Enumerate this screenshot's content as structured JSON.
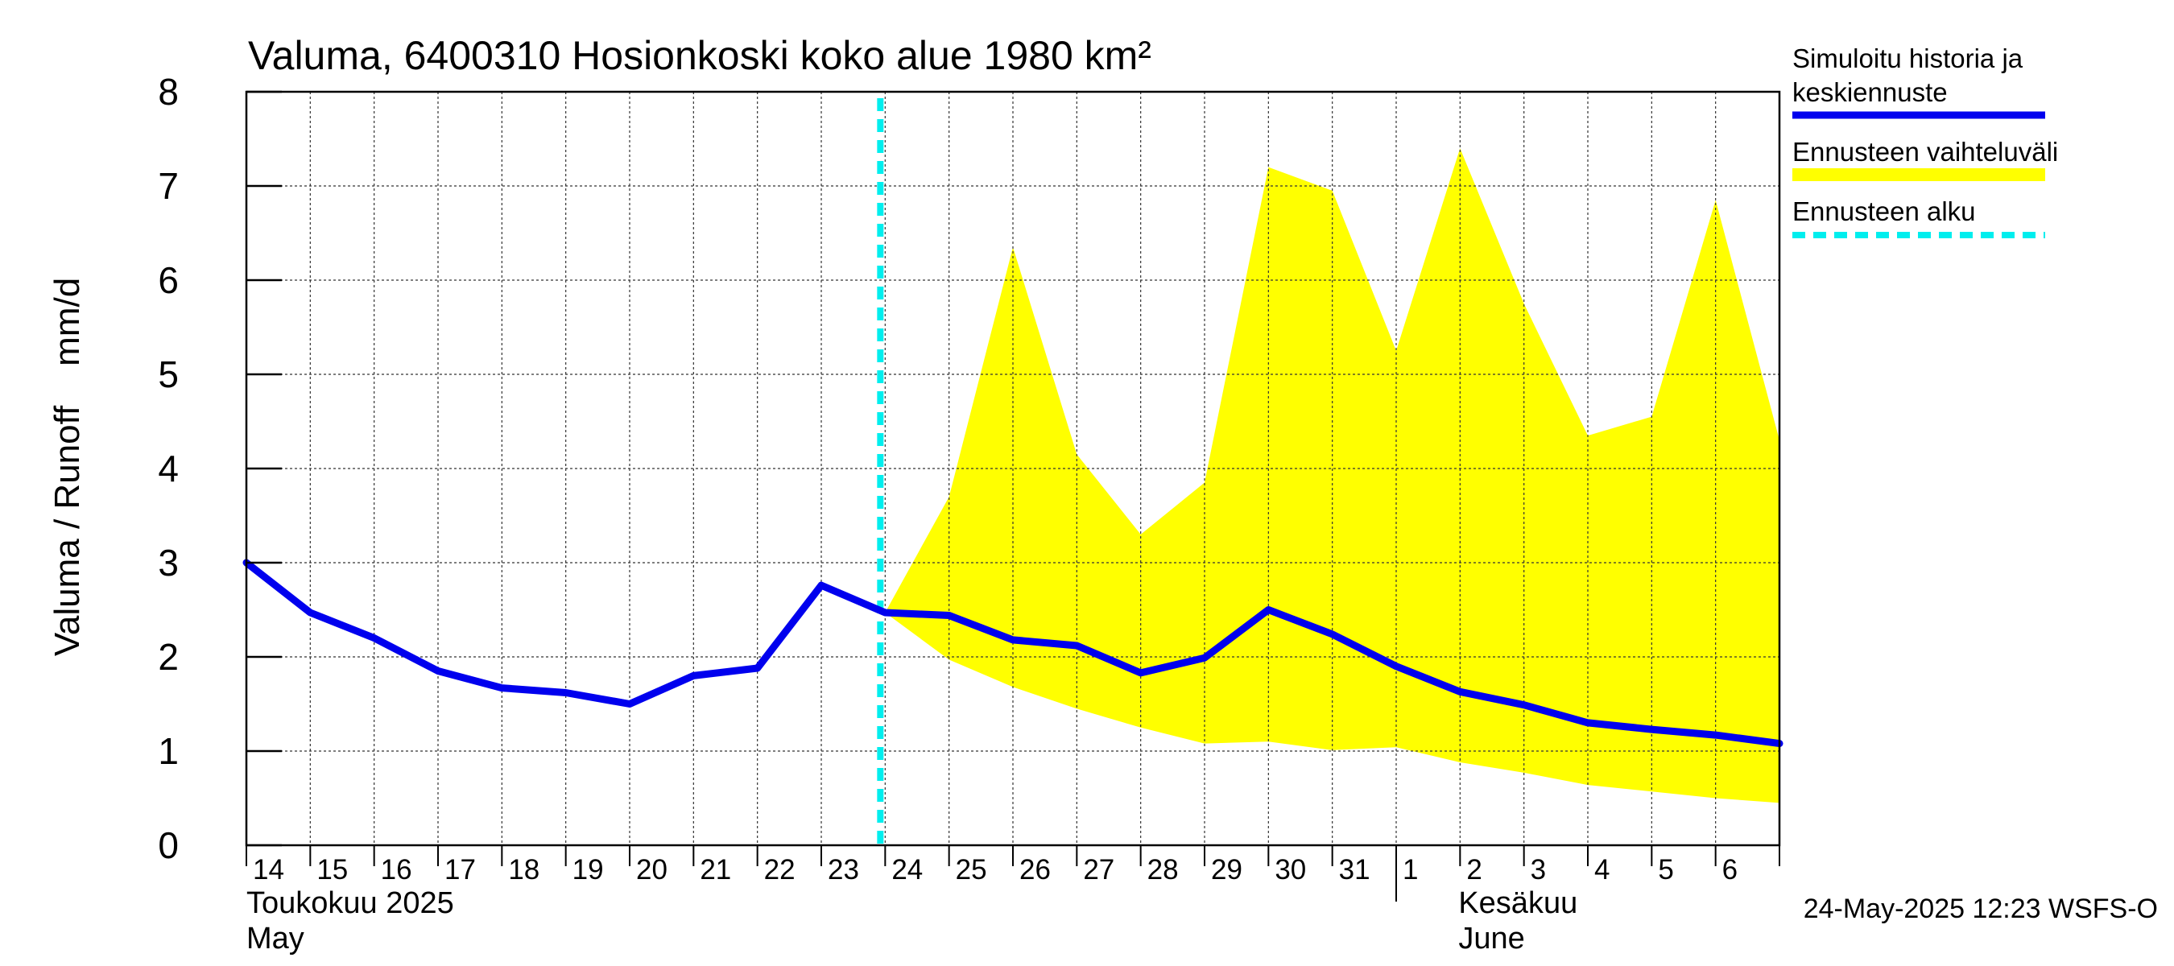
{
  "chart_data": {
    "type": "line",
    "title": "Valuma, 6400310 Hosionkoski koko alue 1980 km²",
    "ylabel": "Valuma / Runoff    mm/d",
    "ylim": [
      0,
      8
    ],
    "yticks": [
      0,
      1,
      2,
      3,
      4,
      5,
      6,
      7,
      8
    ],
    "xlim": [
      "2025-05-14",
      "2025-06-07"
    ],
    "x_tick_labels": [
      "14",
      "15",
      "16",
      "17",
      "18",
      "19",
      "20",
      "21",
      "22",
      "23",
      "24",
      "25",
      "26",
      "27",
      "28",
      "29",
      "30",
      "31",
      "1",
      "2",
      "3",
      "4",
      "5",
      "6"
    ],
    "month_labels": [
      {
        "fi": "Toukokuu  2025",
        "en": "May"
      },
      {
        "fi": "Kesäkuu",
        "en": "June"
      }
    ],
    "grid": true,
    "legend_position": "right",
    "series": [
      {
        "name": "Simuloitu historia ja keskiennuste",
        "color": "#0000ee",
        "x": [
          "2025-05-14",
          "2025-05-15",
          "2025-05-16",
          "2025-05-17",
          "2025-05-18",
          "2025-05-19",
          "2025-05-20",
          "2025-05-21",
          "2025-05-22",
          "2025-05-23",
          "2025-05-24",
          "2025-05-25",
          "2025-05-26",
          "2025-05-27",
          "2025-05-28",
          "2025-05-29",
          "2025-05-30",
          "2025-05-31",
          "2025-06-01",
          "2025-06-02",
          "2025-06-03",
          "2025-06-04",
          "2025-06-05",
          "2025-06-06",
          "2025-06-07"
        ],
        "y": [
          3.0,
          2.47,
          2.2,
          1.85,
          1.67,
          1.62,
          1.5,
          1.8,
          1.88,
          2.76,
          2.47,
          2.44,
          2.18,
          2.12,
          1.83,
          1.99,
          2.5,
          2.24,
          1.9,
          1.63,
          1.49,
          1.3,
          1.23,
          1.17,
          1.08
        ]
      },
      {
        "name": "Ennusteen vaihteluväli",
        "type": "area",
        "color": "#ffff00",
        "x": [
          "2025-05-24",
          "2025-05-25",
          "2025-05-26",
          "2025-05-27",
          "2025-05-28",
          "2025-05-29",
          "2025-05-30",
          "2025-05-31",
          "2025-06-01",
          "2025-06-02",
          "2025-06-03",
          "2025-06-04",
          "2025-06-05",
          "2025-06-06",
          "2025-06-07"
        ],
        "upper": [
          2.47,
          3.7,
          6.35,
          4.15,
          3.3,
          3.85,
          7.2,
          6.95,
          5.25,
          7.4,
          5.75,
          4.35,
          4.55,
          6.85,
          4.3
        ],
        "lower": [
          2.47,
          1.97,
          1.68,
          1.45,
          1.25,
          1.08,
          1.1,
          1.01,
          1.04,
          0.88,
          0.77,
          0.64,
          0.57,
          0.5,
          0.45
        ]
      }
    ],
    "forecast_start": {
      "name": "Ennusteen alku",
      "x": "2025-05-24",
      "color": "#00eeee"
    },
    "timestamp": "24-May-2025 12:23 WSFS-O"
  }
}
